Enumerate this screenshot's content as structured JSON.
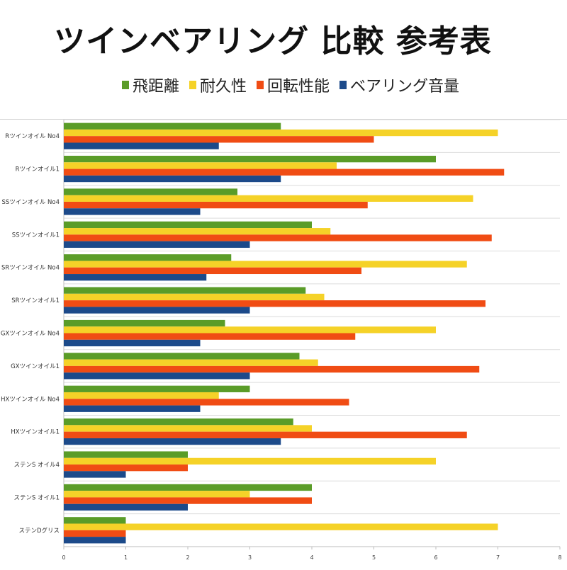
{
  "title": "ツインベアリング 比較 参考表",
  "legend": [
    {
      "label": "飛距離",
      "color": "#5a9c28"
    },
    {
      "label": "耐久性",
      "color": "#f5d228"
    },
    {
      "label": "回転性能",
      "color": "#f04c14"
    },
    {
      "label": "ベアリング音量",
      "color": "#1c4a8a"
    }
  ],
  "chart_data": {
    "type": "bar",
    "orientation": "horizontal",
    "title": "ツインベアリング 比較 参考表",
    "categories": [
      "Rツインオイル No4",
      "Rツインオイル1",
      "SSツインオイル No4",
      "SSツインオイル1",
      "SRツインオイル No4",
      "SRツインオイル1",
      "GXツインオイル No4",
      "GXツインオイル1",
      "HXツインオイル No4",
      "HXツインオイル1",
      "ステンS オイル4",
      "ステンS オイル1",
      "ステンDグリス"
    ],
    "series": [
      {
        "name": "飛距離",
        "color": "#5a9c28",
        "values": [
          3.5,
          6.0,
          2.8,
          4.0,
          2.7,
          3.9,
          2.6,
          3.8,
          3.0,
          3.7,
          2.0,
          4.0,
          1.0
        ]
      },
      {
        "name": "耐久性",
        "color": "#f5d228",
        "values": [
          7.0,
          4.4,
          6.6,
          4.3,
          6.5,
          4.2,
          6.0,
          4.1,
          2.5,
          4.0,
          6.0,
          3.0,
          7.0
        ]
      },
      {
        "name": "回転性能",
        "color": "#f04c14",
        "values": [
          5.0,
          7.1,
          4.9,
          6.9,
          4.8,
          6.8,
          4.7,
          6.7,
          4.6,
          6.5,
          2.0,
          4.0,
          1.0
        ]
      },
      {
        "name": "ベアリング音量",
        "color": "#1c4a8a",
        "values": [
          2.5,
          3.5,
          2.2,
          3.0,
          2.3,
          3.0,
          2.2,
          3.0,
          2.2,
          3.5,
          1.0,
          2.0,
          1.0
        ]
      }
    ],
    "xlim": [
      0,
      8
    ],
    "xticks": [
      "0",
      "1",
      "2",
      "3",
      "4",
      "5",
      "6",
      "7",
      "8"
    ],
    "grid": false,
    "legend_position": "top"
  }
}
